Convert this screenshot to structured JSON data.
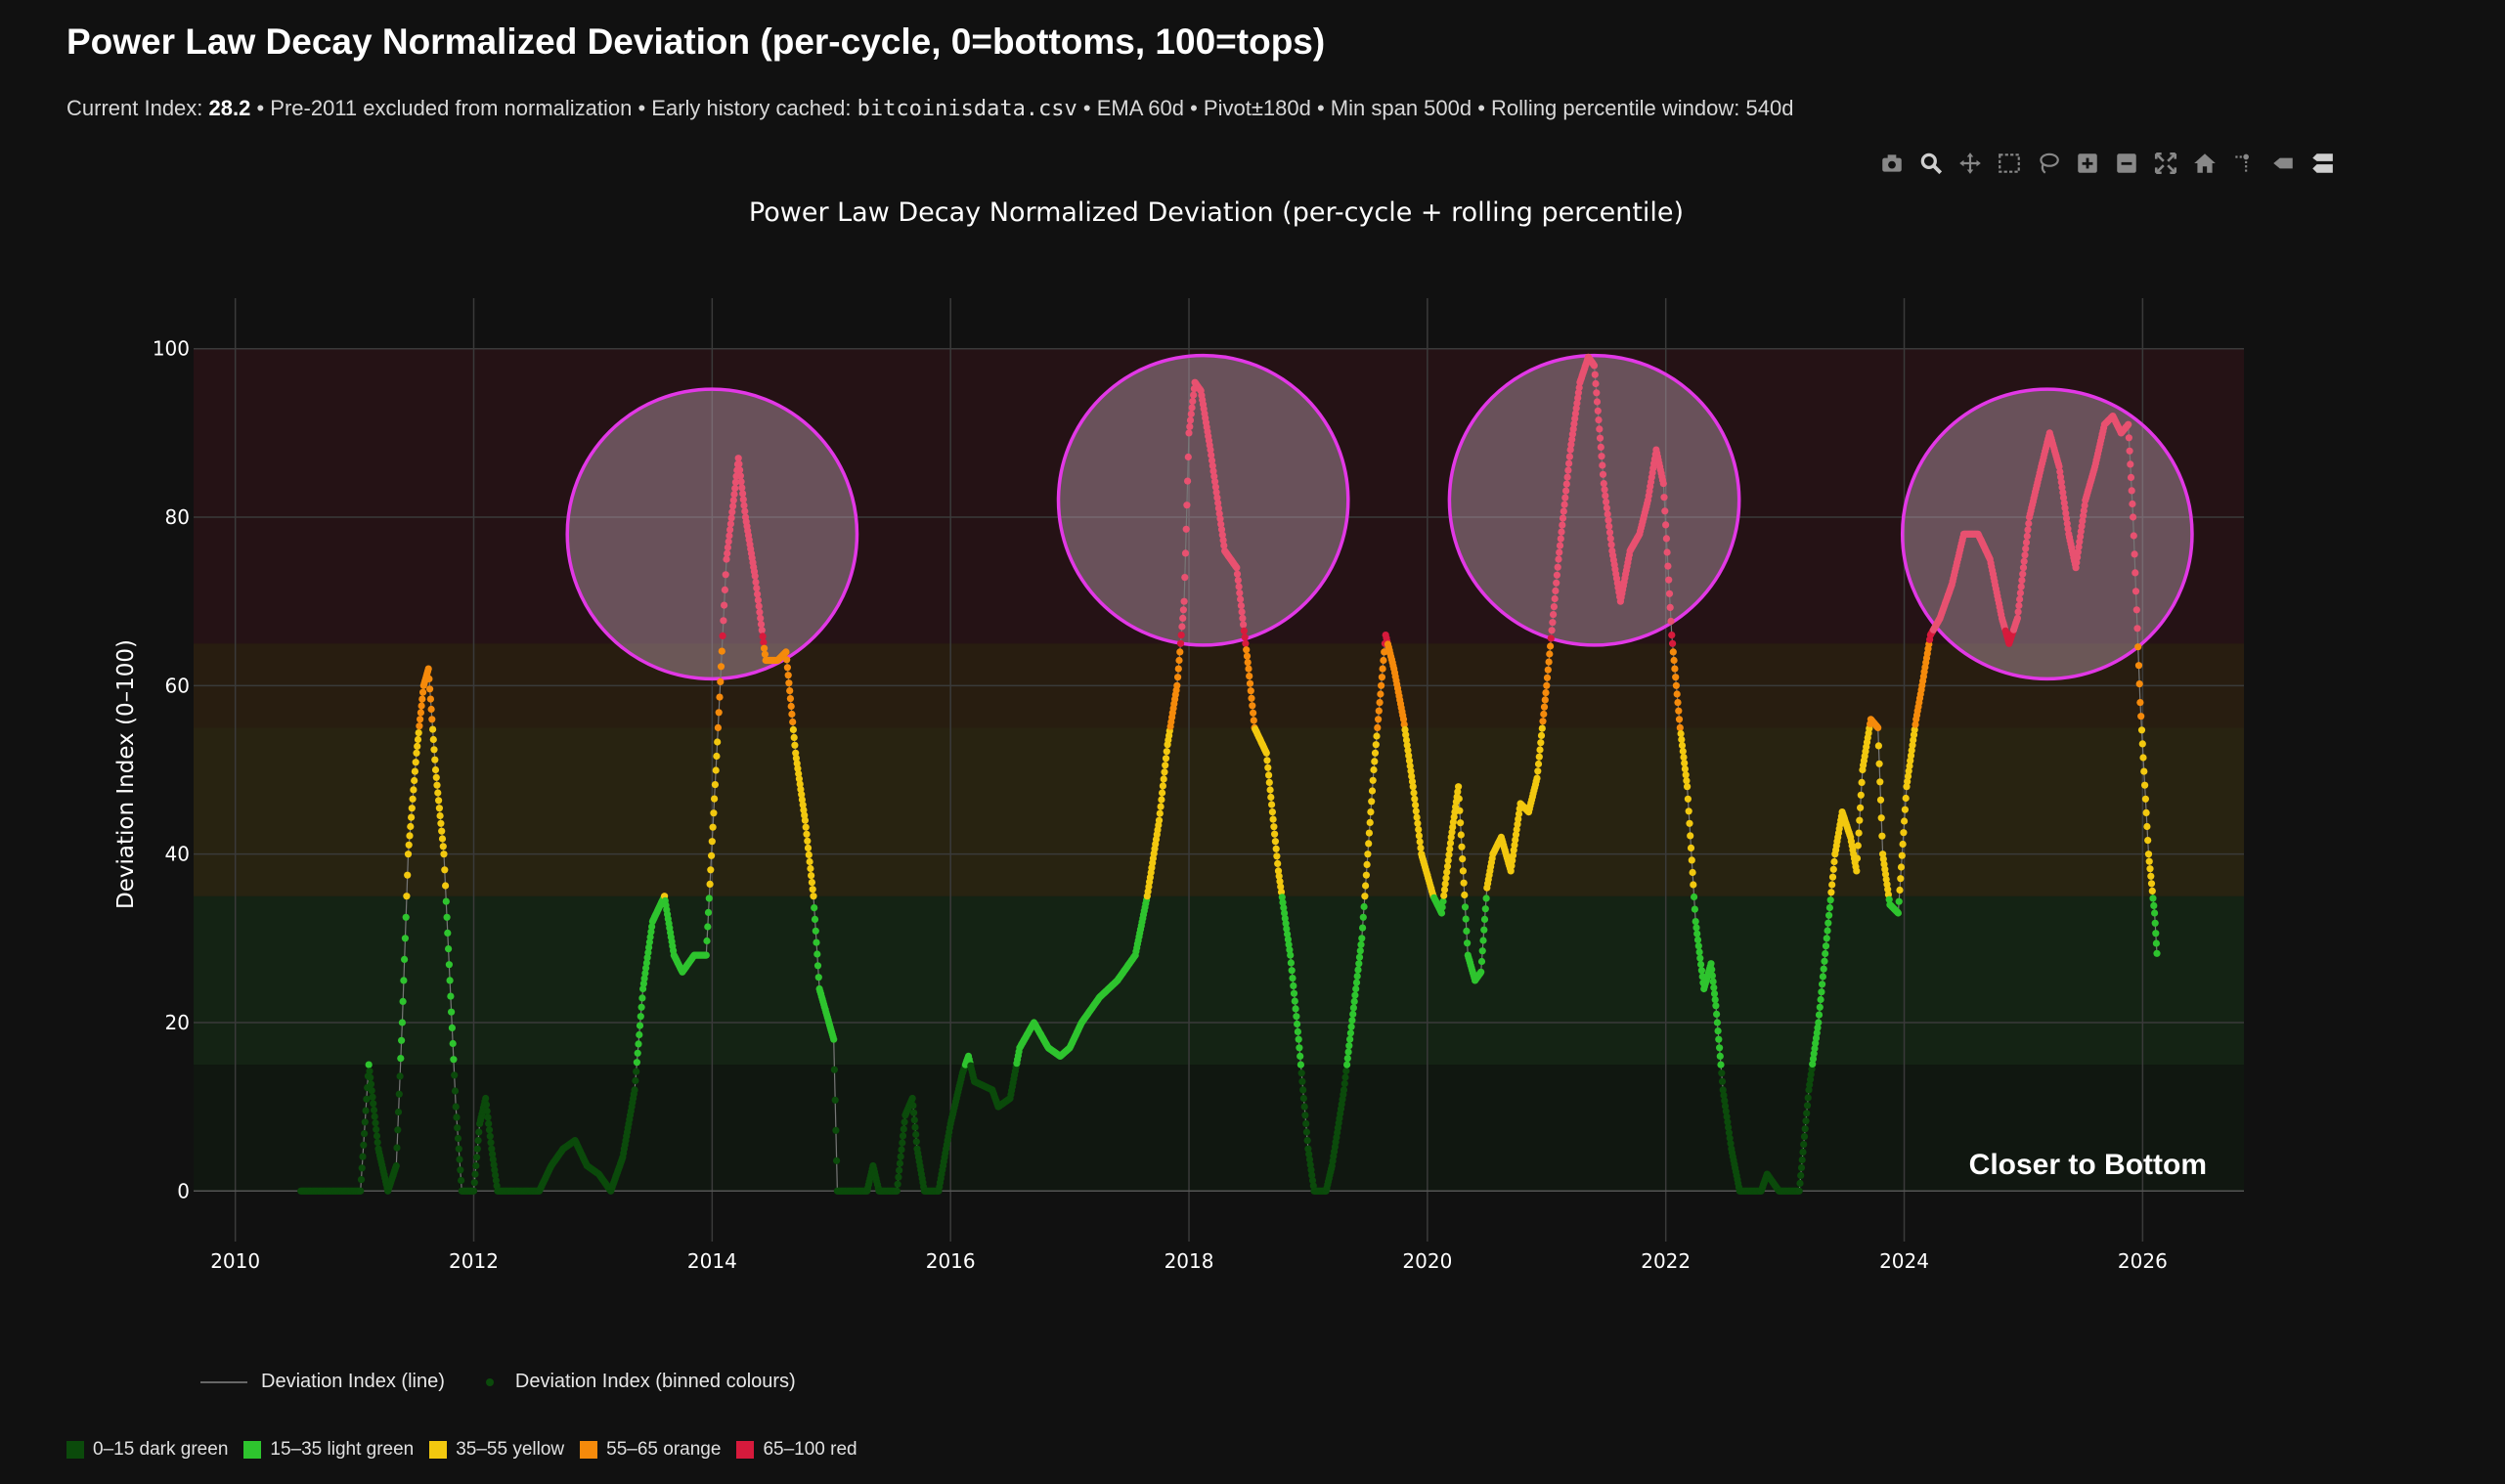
{
  "header": {
    "title": "Power Law Decay Normalized Deviation (per-cycle, 0=bottoms, 100=tops)",
    "sub_prefix": "Current Index: ",
    "current_index": "28.2",
    "sub_middle": " • Pre-2011 excluded from normalization • Early history cached: ",
    "cache_file": "bitcoinisdata.csv",
    "sub_suffix": " • EMA 60d • Pivot±180d • Min span 500d • Rolling percentile window: 540d"
  },
  "modebar": [
    "camera-icon",
    "zoom-icon",
    "pan-icon",
    "box-select-icon",
    "lasso-select-icon",
    "zoom-in-icon",
    "zoom-out-icon",
    "autoscale-icon",
    "reset-axes-icon",
    "spike-lines-icon",
    "hover-closest-icon",
    "hover-compare-icon"
  ],
  "legend": [
    {
      "label": "Deviation Index (line)",
      "kind": "line"
    },
    {
      "label": "Deviation Index (binned colours)",
      "kind": "marker"
    }
  ],
  "bins": [
    {
      "label": "0–15 dark green",
      "color": "#0b4a0b"
    },
    {
      "label": "15–35 light green",
      "color": "#2ec42e"
    },
    {
      "label": "35–55 yellow",
      "color": "#f2c80f"
    },
    {
      "label": "55–65 orange",
      "color": "#f58a0b"
    },
    {
      "label": "65–100 red",
      "color": "#d61a3c"
    }
  ],
  "chart_data": {
    "type": "line",
    "title": "Power Law Decay Normalized Deviation (per-cycle + rolling percentile)",
    "xlabel": "",
    "ylabel": "Deviation Index (0–100)",
    "xlim": [
      2009.65,
      2026.85
    ],
    "ylim": [
      -6,
      106
    ],
    "x_ticks": [
      "2010",
      "2012",
      "2014",
      "2016",
      "2018",
      "2020",
      "2022",
      "2024",
      "2026"
    ],
    "x_tick_values": [
      2010,
      2012,
      2014,
      2016,
      2018,
      2020,
      2022,
      2024,
      2026
    ],
    "y_ticks": [
      "0",
      "20",
      "40",
      "60",
      "80",
      "100"
    ],
    "y_tick_values": [
      0,
      20,
      40,
      60,
      80,
      100
    ],
    "grid": true,
    "annotation": "Closer to Bottom",
    "bands": [
      {
        "from": 0,
        "to": 15,
        "color": "#0b4a0b"
      },
      {
        "from": 15,
        "to": 35,
        "color": "#2ec42e"
      },
      {
        "from": 35,
        "to": 55,
        "color": "#f2c80f"
      },
      {
        "from": 55,
        "to": 65,
        "color": "#f58a0b"
      },
      {
        "from": 65,
        "to": 100,
        "color": "#d61a3c"
      }
    ],
    "highlight_circles": [
      {
        "x": 2014.0,
        "y": 78,
        "radius_years": 1.35
      },
      {
        "x": 2018.12,
        "y": 82,
        "radius_years": 1.35
      },
      {
        "x": 2021.4,
        "y": 82,
        "radius_years": 1.35
      },
      {
        "x": 2025.2,
        "y": 78,
        "radius_years": 1.35
      }
    ],
    "series": [
      {
        "name": "Deviation Index",
        "points": [
          [
            2010.55,
            0
          ],
          [
            2010.8,
            0
          ],
          [
            2011.05,
            0
          ],
          [
            2011.12,
            15
          ],
          [
            2011.2,
            5
          ],
          [
            2011.28,
            0
          ],
          [
            2011.35,
            3
          ],
          [
            2011.4,
            20
          ],
          [
            2011.45,
            40
          ],
          [
            2011.52,
            52
          ],
          [
            2011.58,
            60
          ],
          [
            2011.62,
            62
          ],
          [
            2011.68,
            50
          ],
          [
            2011.75,
            40
          ],
          [
            2011.8,
            25
          ],
          [
            2011.85,
            10
          ],
          [
            2011.9,
            0
          ],
          [
            2012.0,
            0
          ],
          [
            2012.05,
            8
          ],
          [
            2012.1,
            11
          ],
          [
            2012.15,
            5
          ],
          [
            2012.2,
            0
          ],
          [
            2012.4,
            0
          ],
          [
            2012.55,
            0
          ],
          [
            2012.65,
            3
          ],
          [
            2012.75,
            5
          ],
          [
            2012.85,
            6
          ],
          [
            2012.95,
            3
          ],
          [
            2013.05,
            2
          ],
          [
            2013.15,
            0
          ],
          [
            2013.25,
            4
          ],
          [
            2013.35,
            12
          ],
          [
            2013.42,
            24
          ],
          [
            2013.5,
            32
          ],
          [
            2013.6,
            35
          ],
          [
            2013.68,
            28
          ],
          [
            2013.75,
            26
          ],
          [
            2013.85,
            28
          ],
          [
            2013.95,
            28
          ],
          [
            2014.05,
            55
          ],
          [
            2014.12,
            75
          ],
          [
            2014.18,
            82
          ],
          [
            2014.22,
            87
          ],
          [
            2014.28,
            80
          ],
          [
            2014.36,
            73
          ],
          [
            2014.45,
            63
          ],
          [
            2014.55,
            63
          ],
          [
            2014.62,
            64
          ],
          [
            2014.7,
            52
          ],
          [
            2014.78,
            44
          ],
          [
            2014.85,
            35
          ],
          [
            2014.9,
            24
          ],
          [
            2014.98,
            20
          ],
          [
            2015.02,
            18
          ],
          [
            2015.05,
            0
          ],
          [
            2015.3,
            0
          ],
          [
            2015.35,
            3
          ],
          [
            2015.4,
            0
          ],
          [
            2015.55,
            0
          ],
          [
            2015.62,
            9
          ],
          [
            2015.68,
            11
          ],
          [
            2015.72,
            5
          ],
          [
            2015.78,
            0
          ],
          [
            2015.9,
            0
          ],
          [
            2016.0,
            8
          ],
          [
            2016.1,
            14
          ],
          [
            2016.15,
            16
          ],
          [
            2016.2,
            13
          ],
          [
            2016.35,
            12
          ],
          [
            2016.4,
            10
          ],
          [
            2016.5,
            11
          ],
          [
            2016.58,
            17
          ],
          [
            2016.7,
            20
          ],
          [
            2016.82,
            17
          ],
          [
            2016.92,
            16
          ],
          [
            2017.0,
            17
          ],
          [
            2017.1,
            20
          ],
          [
            2017.25,
            23
          ],
          [
            2017.4,
            25
          ],
          [
            2017.55,
            28
          ],
          [
            2017.65,
            35
          ],
          [
            2017.75,
            44
          ],
          [
            2017.82,
            53
          ],
          [
            2017.9,
            60
          ],
          [
            2017.96,
            70
          ],
          [
            2018.0,
            90
          ],
          [
            2018.05,
            96
          ],
          [
            2018.1,
            95
          ],
          [
            2018.18,
            88
          ],
          [
            2018.3,
            76
          ],
          [
            2018.4,
            74
          ],
          [
            2018.5,
            62
          ],
          [
            2018.55,
            55
          ],
          [
            2018.65,
            52
          ],
          [
            2018.75,
            38
          ],
          [
            2018.85,
            28
          ],
          [
            2018.92,
            18
          ],
          [
            2019.0,
            5
          ],
          [
            2019.05,
            0
          ],
          [
            2019.15,
            0
          ],
          [
            2019.2,
            3
          ],
          [
            2019.3,
            12
          ],
          [
            2019.45,
            30
          ],
          [
            2019.55,
            50
          ],
          [
            2019.6,
            58
          ],
          [
            2019.65,
            66
          ],
          [
            2019.72,
            62
          ],
          [
            2019.8,
            56
          ],
          [
            2019.88,
            48
          ],
          [
            2019.95,
            40
          ],
          [
            2020.05,
            35
          ],
          [
            2020.12,
            33
          ],
          [
            2020.2,
            42
          ],
          [
            2020.26,
            48
          ],
          [
            2020.3,
            38
          ],
          [
            2020.34,
            28
          ],
          [
            2020.4,
            25
          ],
          [
            2020.45,
            26
          ],
          [
            2020.5,
            36
          ],
          [
            2020.55,
            40
          ],
          [
            2020.62,
            42
          ],
          [
            2020.7,
            38
          ],
          [
            2020.78,
            46
          ],
          [
            2020.85,
            45
          ],
          [
            2020.92,
            49
          ],
          [
            2021.0,
            60
          ],
          [
            2021.1,
            75
          ],
          [
            2021.2,
            88
          ],
          [
            2021.28,
            96
          ],
          [
            2021.35,
            99
          ],
          [
            2021.4,
            98
          ],
          [
            2021.48,
            84
          ],
          [
            2021.55,
            76
          ],
          [
            2021.62,
            70
          ],
          [
            2021.7,
            76
          ],
          [
            2021.78,
            78
          ],
          [
            2021.85,
            82
          ],
          [
            2021.92,
            88
          ],
          [
            2021.98,
            84
          ],
          [
            2022.05,
            66
          ],
          [
            2022.12,
            55
          ],
          [
            2022.18,
            48
          ],
          [
            2022.25,
            32
          ],
          [
            2022.32,
            24
          ],
          [
            2022.38,
            27
          ],
          [
            2022.42,
            22
          ],
          [
            2022.48,
            12
          ],
          [
            2022.55,
            5
          ],
          [
            2022.62,
            0
          ],
          [
            2022.8,
            0
          ],
          [
            2022.85,
            2
          ],
          [
            2022.95,
            0
          ],
          [
            2023.05,
            0
          ],
          [
            2023.12,
            0
          ],
          [
            2023.2,
            12
          ],
          [
            2023.28,
            20
          ],
          [
            2023.35,
            30
          ],
          [
            2023.42,
            40
          ],
          [
            2023.48,
            45
          ],
          [
            2023.55,
            42
          ],
          [
            2023.6,
            38
          ],
          [
            2023.65,
            50
          ],
          [
            2023.72,
            56
          ],
          [
            2023.78,
            55
          ],
          [
            2023.82,
            40
          ],
          [
            2023.88,
            34
          ],
          [
            2023.95,
            33
          ],
          [
            2024.02,
            48
          ],
          [
            2024.1,
            56
          ],
          [
            2024.15,
            60
          ],
          [
            2024.22,
            66
          ],
          [
            2024.3,
            68
          ],
          [
            2024.4,
            72
          ],
          [
            2024.5,
            78
          ],
          [
            2024.62,
            78
          ],
          [
            2024.72,
            75
          ],
          [
            2024.82,
            68
          ],
          [
            2024.88,
            65
          ],
          [
            2024.95,
            68
          ],
          [
            2025.05,
            80
          ],
          [
            2025.15,
            86
          ],
          [
            2025.22,
            90
          ],
          [
            2025.3,
            86
          ],
          [
            2025.38,
            78
          ],
          [
            2025.44,
            74
          ],
          [
            2025.52,
            82
          ],
          [
            2025.6,
            86
          ],
          [
            2025.68,
            91
          ],
          [
            2025.75,
            92
          ],
          [
            2025.82,
            90
          ],
          [
            2025.88,
            91
          ],
          [
            2025.92,
            80
          ],
          [
            2025.98,
            58
          ],
          [
            2026.05,
            40
          ],
          [
            2026.1,
            33
          ],
          [
            2026.12,
            28.2
          ]
        ]
      }
    ]
  }
}
